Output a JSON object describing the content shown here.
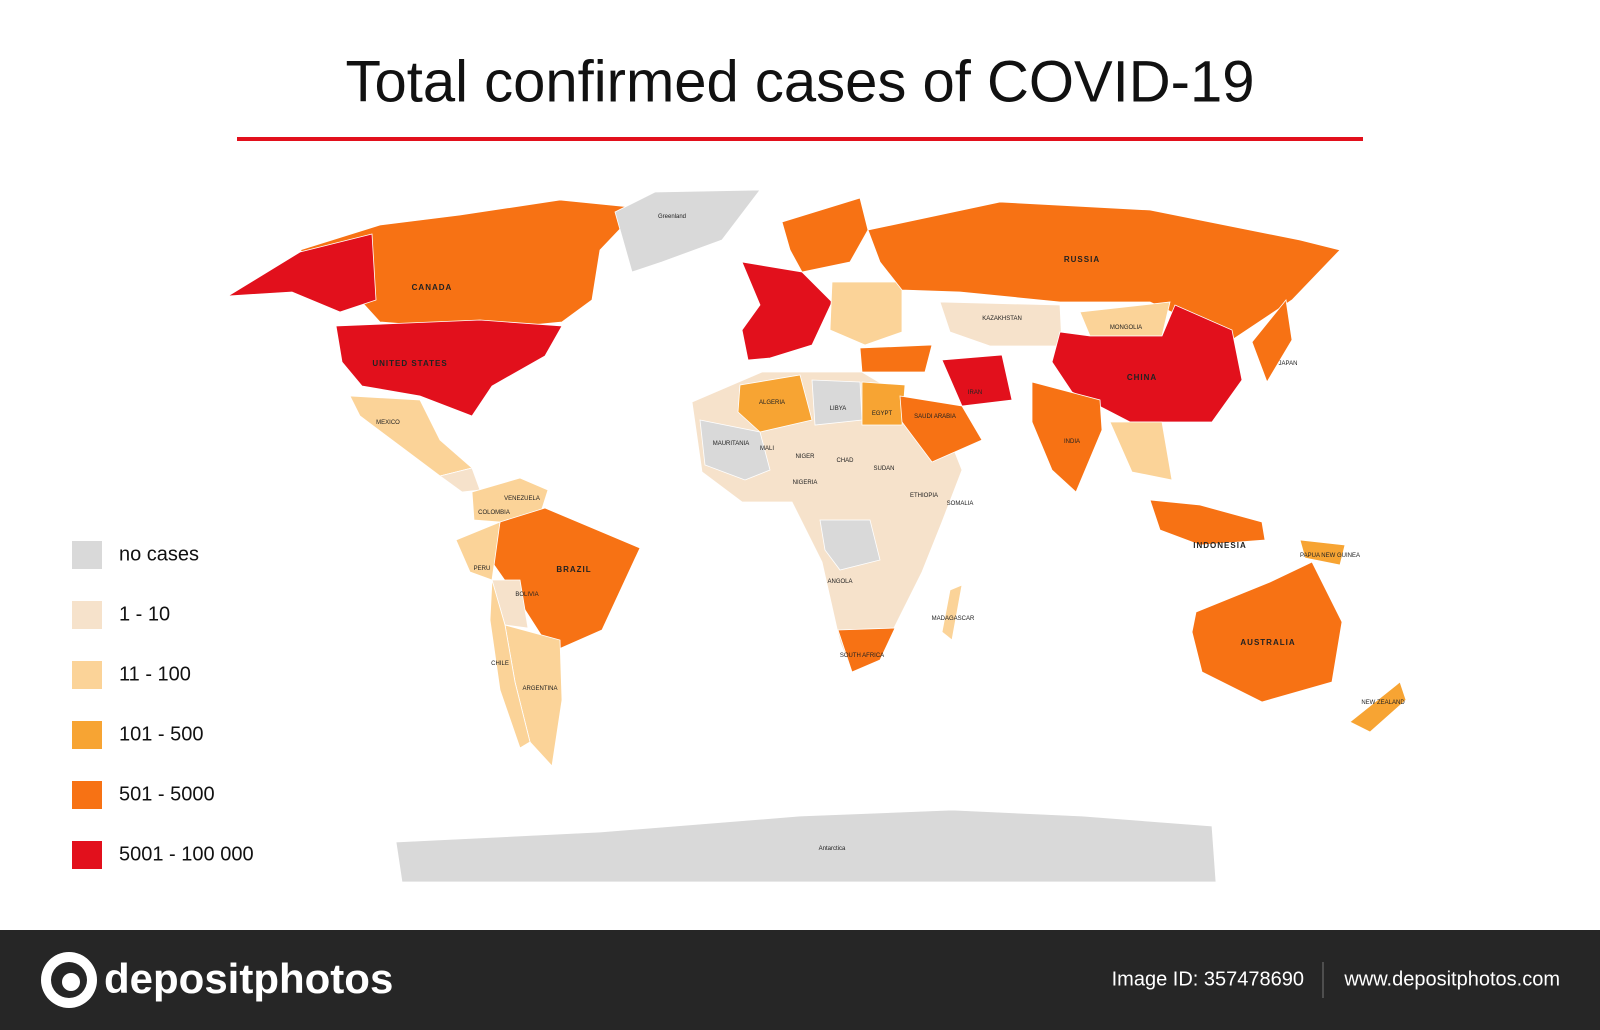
{
  "title": "Total confirmed cases of COVID-19",
  "legend": [
    {
      "label": "no cases",
      "color": "#d9d9d9"
    },
    {
      "label": "1 - 10",
      "color": "#f6e2cb"
    },
    {
      "label": "11 - 100",
      "color": "#fbd398"
    },
    {
      "label": "101 - 500",
      "color": "#f7a433"
    },
    {
      "label": "501 - 5000",
      "color": "#f77214"
    },
    {
      "label": "5001 - 100 000",
      "color": "#e2101c"
    }
  ],
  "map_labels": [
    "CANADA",
    "UNITED STATES",
    "MEXICO",
    "Greenland",
    "COLOMBIA",
    "VENEZUELA",
    "BRAZIL",
    "PERU",
    "BOLIVIA",
    "ARGENTINA",
    "CHILE",
    "ALGERIA",
    "LIBYA",
    "EGYPT",
    "MALI",
    "MAURITANIA",
    "NIGER",
    "CHAD",
    "SUDAN",
    "NIGERIA",
    "ETHIOPIA",
    "SOMALIA",
    "ANGOLA",
    "SOUTH AFRICA",
    "MADAGASCAR",
    "RUSSIA",
    "KAZAKHSTAN",
    "MONGOLIA",
    "CHINA",
    "IRAN",
    "SAUDI ARABIA",
    "INDIA",
    "JAPAN",
    "INDONESIA",
    "PAPUA NEW GUINEA",
    "AUSTRALIA",
    "NEW ZEALAND",
    "Antarctica"
  ],
  "footer": {
    "brand": "depositphotos",
    "image_id": "Image ID: 357478690",
    "url": "www.depositphotos.com"
  }
}
